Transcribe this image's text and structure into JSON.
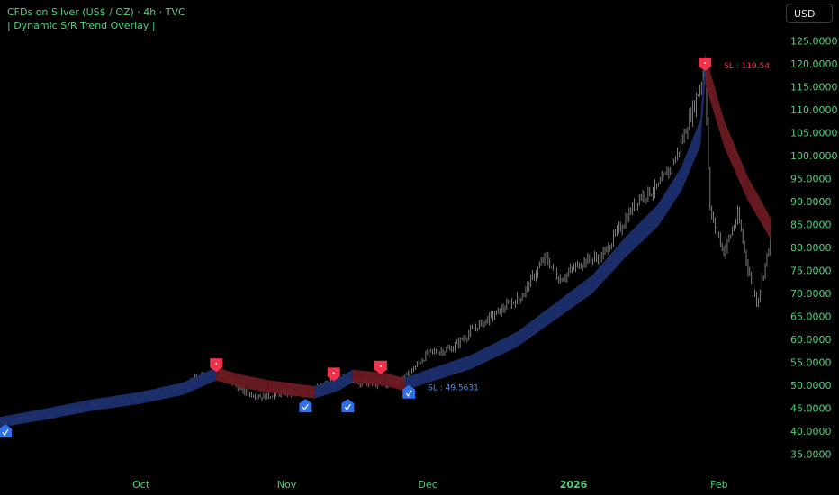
{
  "header": {
    "title": "CFDs on Silver (US$ / OZ) · 4h · TVC",
    "subtitle": "| Dynamic S/R Trend Overlay |"
  },
  "controls": {
    "currency_label": "USD"
  },
  "colors": {
    "text_green": "#50d07a",
    "candle": "#9a9a9a",
    "support_band": "#1c2f6e",
    "resistance_band": "#6b1a20",
    "buy_marker": "#2f6fe8",
    "sell_marker": "#f0334a",
    "sl_sell_text": "#f0334a",
    "sl_buy_text": "#4d8ff0"
  },
  "chart_data": {
    "type": "candlestick",
    "title": "CFDs on Silver (US$ / OZ) · 4h · TVC",
    "interval": "4h",
    "x_range": [
      "2025-09-01",
      "2026-02-15"
    ],
    "ylim": [
      32,
      128
    ],
    "y_ticks": [
      "35.0000",
      "40.0000",
      "45.0000",
      "50.0000",
      "55.0000",
      "60.0000",
      "65.0000",
      "70.0000",
      "75.0000",
      "80.0000",
      "85.0000",
      "90.0000",
      "95.0000",
      "100.0000",
      "105.0000",
      "110.0000",
      "115.0000",
      "120.0000",
      "125.0000"
    ],
    "x_ticks": [
      {
        "label": "Oct",
        "date": "2025-10-01"
      },
      {
        "label": "Nov",
        "date": "2025-11-01"
      },
      {
        "label": "Dec",
        "date": "2025-12-01"
      },
      {
        "label": "2026",
        "date": "2026-01-01"
      },
      {
        "label": "Feb",
        "date": "2026-02-01"
      }
    ],
    "grid": false,
    "price_path": [
      [
        "2025-09-01",
        42
      ],
      [
        "2025-09-08",
        43.2
      ],
      [
        "2025-09-15",
        44.5
      ],
      [
        "2025-09-22",
        46
      ],
      [
        "2025-09-29",
        47
      ],
      [
        "2025-10-06",
        48.6
      ],
      [
        "2025-10-12",
        50.8
      ],
      [
        "2025-10-17",
        53.5
      ],
      [
        "2025-10-20",
        51
      ],
      [
        "2025-10-23",
        48.5
      ],
      [
        "2025-10-27",
        47.5
      ],
      [
        "2025-10-31",
        48.5
      ],
      [
        "2025-11-05",
        48
      ],
      [
        "2025-11-10",
        50.5
      ],
      [
        "2025-11-14",
        51.5
      ],
      [
        "2025-11-18",
        50.5
      ],
      [
        "2025-11-22",
        50.3
      ],
      [
        "2025-11-26",
        51.5
      ],
      [
        "2025-12-01",
        57
      ],
      [
        "2025-12-06",
        58
      ],
      [
        "2025-12-11",
        62.5
      ],
      [
        "2025-12-16",
        66
      ],
      [
        "2025-12-21",
        69.5
      ],
      [
        "2025-12-26",
        78
      ],
      [
        "2025-12-29",
        73
      ],
      [
        "2026-01-03",
        77
      ],
      [
        "2026-01-07",
        78
      ],
      [
        "2026-01-12",
        86
      ],
      [
        "2026-01-15",
        91
      ],
      [
        "2026-01-19",
        93
      ],
      [
        "2026-01-23",
        100
      ],
      [
        "2026-01-27",
        112
      ],
      [
        "2026-01-29",
        119
      ],
      [
        "2026-01-30",
        88
      ],
      [
        "2026-02-02",
        79
      ],
      [
        "2026-02-05",
        87
      ],
      [
        "2026-02-07",
        76
      ],
      [
        "2026-02-09",
        68
      ],
      [
        "2026-02-12",
        82
      ]
    ],
    "trend_band": [
      {
        "date": "2025-09-01",
        "mid": 42,
        "regime": "support"
      },
      {
        "date": "2025-09-10",
        "mid": 43.6,
        "regime": "support"
      },
      {
        "date": "2025-09-20",
        "mid": 45.6,
        "regime": "support"
      },
      {
        "date": "2025-10-01",
        "mid": 47.3,
        "regime": "support"
      },
      {
        "date": "2025-10-10",
        "mid": 49.3,
        "regime": "support"
      },
      {
        "date": "2025-10-17",
        "mid": 52.5,
        "regime": "resistance"
      },
      {
        "date": "2025-10-22",
        "mid": 51,
        "regime": "resistance"
      },
      {
        "date": "2025-10-28",
        "mid": 49.8,
        "regime": "resistance"
      },
      {
        "date": "2025-11-03",
        "mid": 49,
        "regime": "resistance"
      },
      {
        "date": "2025-11-07",
        "mid": 48.5,
        "regime": "support"
      },
      {
        "date": "2025-11-12",
        "mid": 50.2,
        "regime": "support"
      },
      {
        "date": "2025-11-15",
        "mid": 52,
        "regime": "resistance"
      },
      {
        "date": "2025-11-22",
        "mid": 51.3,
        "regime": "resistance"
      },
      {
        "date": "2025-11-26",
        "mid": 50.2,
        "regime": "support"
      },
      {
        "date": "2025-12-01",
        "mid": 52,
        "regime": "support"
      },
      {
        "date": "2025-12-10",
        "mid": 55,
        "regime": "support"
      },
      {
        "date": "2025-12-20",
        "mid": 60,
        "regime": "support"
      },
      {
        "date": "2025-12-28",
        "mid": 66,
        "regime": "support"
      },
      {
        "date": "2026-01-05",
        "mid": 72,
        "regime": "support"
      },
      {
        "date": "2026-01-12",
        "mid": 80,
        "regime": "support"
      },
      {
        "date": "2026-01-19",
        "mid": 87,
        "regime": "support"
      },
      {
        "date": "2026-01-24",
        "mid": 95,
        "regime": "support"
      },
      {
        "date": "2026-01-28",
        "mid": 105,
        "regime": "support"
      },
      {
        "date": "2026-01-29",
        "mid": 119,
        "regime": "resistance"
      },
      {
        "date": "2026-02-02",
        "mid": 105,
        "regime": "resistance"
      },
      {
        "date": "2026-02-07",
        "mid": 93,
        "regime": "resistance"
      },
      {
        "date": "2026-02-12",
        "mid": 84,
        "regime": "resistance"
      }
    ],
    "signals": [
      {
        "type": "buy",
        "date": "2025-09-01",
        "price": 40
      },
      {
        "type": "sell",
        "date": "2025-10-17",
        "price": 54.5
      },
      {
        "type": "buy",
        "date": "2025-11-05",
        "price": 45.5
      },
      {
        "type": "sell",
        "date": "2025-11-11",
        "price": 52.5
      },
      {
        "type": "buy",
        "date": "2025-11-14",
        "price": 45.5
      },
      {
        "type": "sell",
        "date": "2025-11-21",
        "price": 54
      },
      {
        "type": "buy",
        "date": "2025-11-27",
        "price": 48.5
      },
      {
        "type": "sell",
        "date": "2026-01-29",
        "price": 120
      }
    ],
    "annotations": [
      {
        "text": "SL : 119.54",
        "date": "2026-02-02",
        "price": 119.54,
        "color": "#f0334a"
      },
      {
        "text": "SL : 49.5631",
        "date": "2025-12-01",
        "price": 49.5631,
        "color": "#4d8ff0"
      }
    ]
  }
}
